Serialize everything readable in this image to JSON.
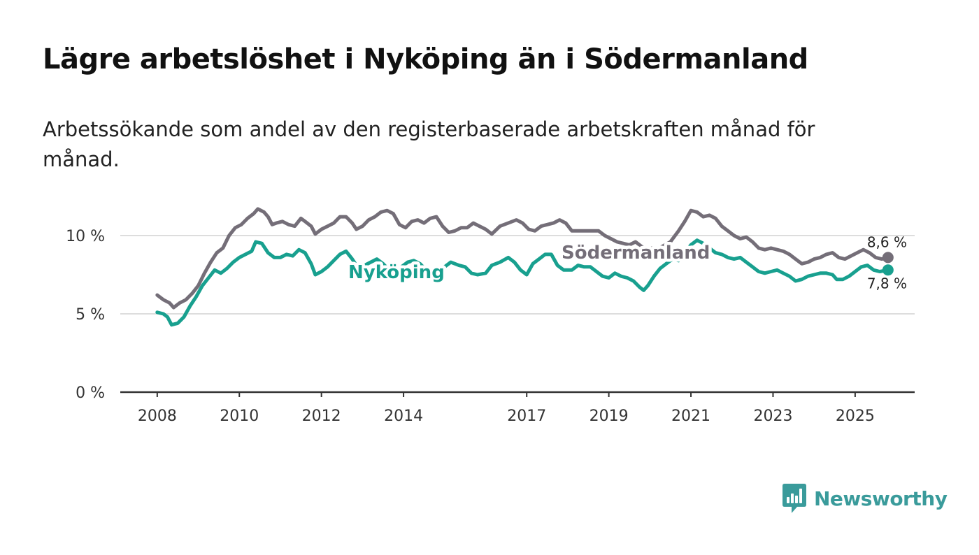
{
  "title": "Lägre arbetslöshet i Nyköping än i Södermanland",
  "subtitle": "Arbetssökande som andel av den registerbaserade arbetskraften månad för månad.",
  "brand": {
    "name": "Newsworthy",
    "color": "#3a9b9b",
    "icon": "newsworthy-logo-icon"
  },
  "colors": {
    "sodermanland": "#746e78",
    "nykoping": "#18a08f",
    "grid": "#dddddd",
    "axis": "#333333"
  },
  "chart_data": {
    "type": "line",
    "title": "Lägre arbetslöshet i Nyköping än i Södermanland",
    "xlabel": "",
    "ylabel": "",
    "xlim": [
      2007.1,
      2026.45
    ],
    "ylim": [
      0,
      12.5
    ],
    "x_ticks": [
      {
        "value": 2008,
        "label": "2008"
      },
      {
        "value": 2010,
        "label": "2010"
      },
      {
        "value": 2012,
        "label": "2012"
      },
      {
        "value": 2014,
        "label": "2014"
      },
      {
        "value": 2017,
        "label": "2017"
      },
      {
        "value": 2019,
        "label": "2019"
      },
      {
        "value": 2021,
        "label": "2021"
      },
      {
        "value": 2023,
        "label": "2023"
      },
      {
        "value": 2025,
        "label": "2025"
      }
    ],
    "y_ticks": [
      {
        "value": 0,
        "label": "0 %"
      },
      {
        "value": 5,
        "label": "5 %"
      },
      {
        "value": 10,
        "label": "10 %"
      }
    ],
    "series": [
      {
        "name": "Södermanland",
        "label": "Södermanland",
        "color": "#746e78",
        "end_label": "8,6 %",
        "points": [
          [
            2008.0,
            6.2
          ],
          [
            2008.15,
            5.9
          ],
          [
            2008.3,
            5.7
          ],
          [
            2008.4,
            5.4
          ],
          [
            2008.55,
            5.7
          ],
          [
            2008.7,
            5.9
          ],
          [
            2008.85,
            6.3
          ],
          [
            2009.0,
            6.8
          ],
          [
            2009.15,
            7.6
          ],
          [
            2009.3,
            8.3
          ],
          [
            2009.45,
            8.9
          ],
          [
            2009.6,
            9.2
          ],
          [
            2009.75,
            10.0
          ],
          [
            2009.9,
            10.5
          ],
          [
            2010.05,
            10.7
          ],
          [
            2010.2,
            11.1
          ],
          [
            2010.35,
            11.4
          ],
          [
            2010.45,
            11.7
          ],
          [
            2010.6,
            11.5
          ],
          [
            2010.7,
            11.2
          ],
          [
            2010.8,
            10.7
          ],
          [
            2010.9,
            10.8
          ],
          [
            2011.05,
            10.9
          ],
          [
            2011.2,
            10.7
          ],
          [
            2011.35,
            10.6
          ],
          [
            2011.5,
            11.1
          ],
          [
            2011.6,
            10.9
          ],
          [
            2011.75,
            10.6
          ],
          [
            2011.85,
            10.1
          ],
          [
            2012.0,
            10.4
          ],
          [
            2012.15,
            10.6
          ],
          [
            2012.3,
            10.8
          ],
          [
            2012.45,
            11.2
          ],
          [
            2012.6,
            11.2
          ],
          [
            2012.75,
            10.8
          ],
          [
            2012.85,
            10.4
          ],
          [
            2013.0,
            10.6
          ],
          [
            2013.15,
            11.0
          ],
          [
            2013.3,
            11.2
          ],
          [
            2013.45,
            11.5
          ],
          [
            2013.6,
            11.6
          ],
          [
            2013.75,
            11.4
          ],
          [
            2013.9,
            10.7
          ],
          [
            2014.05,
            10.5
          ],
          [
            2014.2,
            10.9
          ],
          [
            2014.35,
            11.0
          ],
          [
            2014.5,
            10.8
          ],
          [
            2014.65,
            11.1
          ],
          [
            2014.8,
            11.2
          ],
          [
            2014.95,
            10.6
          ],
          [
            2015.1,
            10.2
          ],
          [
            2015.25,
            10.3
          ],
          [
            2015.4,
            10.5
          ],
          [
            2015.55,
            10.5
          ],
          [
            2015.7,
            10.8
          ],
          [
            2015.85,
            10.6
          ],
          [
            2016.0,
            10.4
          ],
          [
            2016.15,
            10.1
          ],
          [
            2016.35,
            10.6
          ],
          [
            2016.55,
            10.8
          ],
          [
            2016.75,
            11.0
          ],
          [
            2016.9,
            10.8
          ],
          [
            2017.05,
            10.4
          ],
          [
            2017.2,
            10.3
          ],
          [
            2017.35,
            10.6
          ],
          [
            2017.5,
            10.7
          ],
          [
            2017.65,
            10.8
          ],
          [
            2017.8,
            11.0
          ],
          [
            2017.95,
            10.8
          ],
          [
            2018.1,
            10.3
          ],
          [
            2018.25,
            10.3
          ],
          [
            2018.45,
            10.3
          ],
          [
            2018.6,
            10.3
          ],
          [
            2018.75,
            10.3
          ],
          [
            2018.9,
            10.0
          ],
          [
            2019.05,
            9.8
          ],
          [
            2019.2,
            9.6
          ],
          [
            2019.35,
            9.5
          ],
          [
            2019.5,
            9.4
          ],
          [
            2019.65,
            9.6
          ],
          [
            2019.8,
            9.3
          ],
          [
            2019.95,
            9.1
          ],
          [
            2020.05,
            9.2
          ],
          [
            2020.1,
            9.0
          ],
          [
            2020.3,
            9.3
          ],
          [
            2020.5,
            9.6
          ],
          [
            2020.7,
            10.3
          ],
          [
            2020.85,
            10.9
          ],
          [
            2021.0,
            11.6
          ],
          [
            2021.15,
            11.5
          ],
          [
            2021.3,
            11.2
          ],
          [
            2021.45,
            11.3
          ],
          [
            2021.6,
            11.1
          ],
          [
            2021.75,
            10.6
          ],
          [
            2021.9,
            10.3
          ],
          [
            2022.05,
            10.0
          ],
          [
            2022.2,
            9.8
          ],
          [
            2022.35,
            9.9
          ],
          [
            2022.5,
            9.6
          ],
          [
            2022.65,
            9.2
          ],
          [
            2022.8,
            9.1
          ],
          [
            2022.95,
            9.2
          ],
          [
            2023.1,
            9.1
          ],
          [
            2023.25,
            9.0
          ],
          [
            2023.4,
            8.8
          ],
          [
            2023.55,
            8.5
          ],
          [
            2023.7,
            8.2
          ],
          [
            2023.85,
            8.3
          ],
          [
            2024.0,
            8.5
          ],
          [
            2024.15,
            8.6
          ],
          [
            2024.3,
            8.8
          ],
          [
            2024.45,
            8.9
          ],
          [
            2024.6,
            8.6
          ],
          [
            2024.75,
            8.5
          ],
          [
            2024.9,
            8.7
          ],
          [
            2025.05,
            8.9
          ],
          [
            2025.2,
            9.1
          ],
          [
            2025.35,
            8.9
          ],
          [
            2025.5,
            8.6
          ],
          [
            2025.65,
            8.5
          ],
          [
            2025.8,
            8.6
          ]
        ]
      },
      {
        "name": "Nyköping",
        "label": "Nyköping",
        "color": "#18a08f",
        "end_label": "7,8 %",
        "points": [
          [
            2008.0,
            5.1
          ],
          [
            2008.15,
            5.0
          ],
          [
            2008.25,
            4.8
          ],
          [
            2008.35,
            4.3
          ],
          [
            2008.5,
            4.4
          ],
          [
            2008.65,
            4.8
          ],
          [
            2008.8,
            5.5
          ],
          [
            2008.95,
            6.1
          ],
          [
            2009.1,
            6.8
          ],
          [
            2009.25,
            7.3
          ],
          [
            2009.4,
            7.8
          ],
          [
            2009.55,
            7.6
          ],
          [
            2009.7,
            7.9
          ],
          [
            2009.85,
            8.3
          ],
          [
            2010.0,
            8.6
          ],
          [
            2010.15,
            8.8
          ],
          [
            2010.3,
            9.0
          ],
          [
            2010.4,
            9.6
          ],
          [
            2010.55,
            9.5
          ],
          [
            2010.7,
            8.9
          ],
          [
            2010.85,
            8.6
          ],
          [
            2011.0,
            8.6
          ],
          [
            2011.15,
            8.8
          ],
          [
            2011.3,
            8.7
          ],
          [
            2011.45,
            9.1
          ],
          [
            2011.6,
            8.9
          ],
          [
            2011.75,
            8.2
          ],
          [
            2011.85,
            7.5
          ],
          [
            2012.0,
            7.7
          ],
          [
            2012.15,
            8.0
          ],
          [
            2012.3,
            8.4
          ],
          [
            2012.45,
            8.8
          ],
          [
            2012.6,
            9.0
          ],
          [
            2012.75,
            8.5
          ],
          [
            2012.9,
            7.9
          ],
          [
            2013.05,
            8.1
          ],
          [
            2013.2,
            8.3
          ],
          [
            2013.35,
            8.5
          ],
          [
            2013.5,
            8.2
          ],
          [
            2013.65,
            7.8
          ],
          [
            2013.8,
            7.8
          ],
          [
            2013.95,
            8.0
          ],
          [
            2014.1,
            8.3
          ],
          [
            2014.25,
            8.4
          ],
          [
            2014.4,
            8.2
          ],
          [
            2014.55,
            7.8
          ],
          [
            2014.7,
            7.6
          ],
          [
            2014.85,
            7.8
          ],
          [
            2015.0,
            8.0
          ],
          [
            2015.15,
            8.3
          ],
          [
            2015.35,
            8.1
          ],
          [
            2015.5,
            8.0
          ],
          [
            2015.65,
            7.6
          ],
          [
            2015.8,
            7.5
          ],
          [
            2016.0,
            7.6
          ],
          [
            2016.15,
            8.1
          ],
          [
            2016.35,
            8.3
          ],
          [
            2016.55,
            8.6
          ],
          [
            2016.7,
            8.3
          ],
          [
            2016.85,
            7.8
          ],
          [
            2017.0,
            7.5
          ],
          [
            2017.15,
            8.2
          ],
          [
            2017.3,
            8.5
          ],
          [
            2017.45,
            8.8
          ],
          [
            2017.6,
            8.8
          ],
          [
            2017.75,
            8.1
          ],
          [
            2017.9,
            7.8
          ],
          [
            2018.1,
            7.8
          ],
          [
            2018.25,
            8.1
          ],
          [
            2018.4,
            8.0
          ],
          [
            2018.55,
            8.0
          ],
          [
            2018.7,
            7.7
          ],
          [
            2018.85,
            7.4
          ],
          [
            2019.0,
            7.3
          ],
          [
            2019.15,
            7.6
          ],
          [
            2019.3,
            7.4
          ],
          [
            2019.45,
            7.3
          ],
          [
            2019.6,
            7.1
          ],
          [
            2019.75,
            6.7
          ],
          [
            2019.85,
            6.5
          ],
          [
            2019.95,
            6.8
          ],
          [
            2020.1,
            7.4
          ],
          [
            2020.25,
            7.9
          ],
          [
            2020.4,
            8.2
          ],
          [
            2020.55,
            8.5
          ],
          [
            2020.7,
            8.4
          ],
          [
            2020.85,
            8.9
          ],
          [
            2021.0,
            9.4
          ],
          [
            2021.15,
            9.7
          ],
          [
            2021.3,
            9.5
          ],
          [
            2021.45,
            9.2
          ],
          [
            2021.6,
            8.9
          ],
          [
            2021.75,
            8.8
          ],
          [
            2021.9,
            8.6
          ],
          [
            2022.05,
            8.5
          ],
          [
            2022.2,
            8.6
          ],
          [
            2022.35,
            8.3
          ],
          [
            2022.5,
            8.0
          ],
          [
            2022.65,
            7.7
          ],
          [
            2022.8,
            7.6
          ],
          [
            2022.95,
            7.7
          ],
          [
            2023.1,
            7.8
          ],
          [
            2023.25,
            7.6
          ],
          [
            2023.4,
            7.4
          ],
          [
            2023.55,
            7.1
          ],
          [
            2023.7,
            7.2
          ],
          [
            2023.85,
            7.4
          ],
          [
            2024.0,
            7.5
          ],
          [
            2024.15,
            7.6
          ],
          [
            2024.3,
            7.6
          ],
          [
            2024.45,
            7.5
          ],
          [
            2024.55,
            7.2
          ],
          [
            2024.7,
            7.2
          ],
          [
            2024.85,
            7.4
          ],
          [
            2025.0,
            7.7
          ],
          [
            2025.15,
            8.0
          ],
          [
            2025.3,
            8.1
          ],
          [
            2025.45,
            7.8
          ],
          [
            2025.6,
            7.7
          ],
          [
            2025.8,
            7.8
          ]
        ]
      }
    ]
  }
}
